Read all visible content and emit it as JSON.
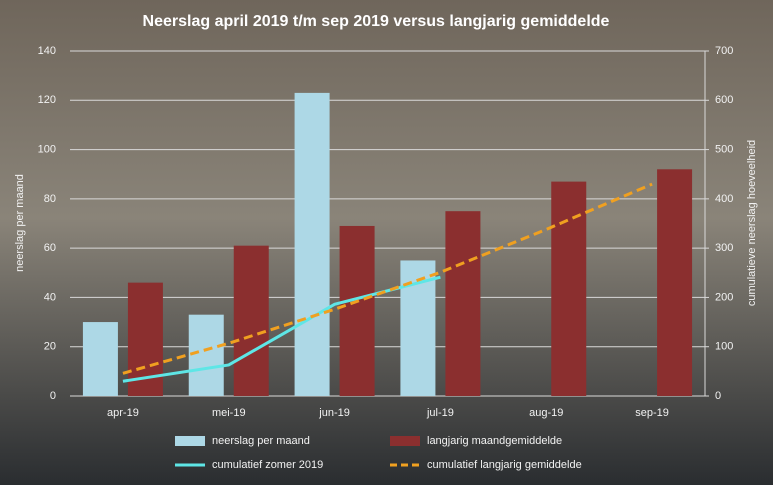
{
  "chart_data": {
    "type": "combo",
    "title": "Neerslag april 2019 t/m sep 2019 versus langjarig gemiddelde",
    "y_label": "neerslag per maand",
    "y2_label": "cumulatieve neerslag hoeveelheid",
    "categories": [
      "apr-19",
      "mei-19",
      "jun-19",
      "jul-19",
      "aug-19",
      "sep-19"
    ],
    "ylim": [
      0,
      140
    ],
    "yticks": [
      0,
      20,
      40,
      60,
      80,
      100,
      120,
      140
    ],
    "y2lim": [
      0,
      700
    ],
    "y2ticks": [
      0,
      100,
      200,
      300,
      400,
      500,
      600,
      700
    ],
    "grid": true,
    "series": [
      {
        "name": "neerslag per maand",
        "type": "bar",
        "color": "#add8e6",
        "values": [
          30,
          33,
          123,
          55,
          null,
          null
        ]
      },
      {
        "name": "langjarig maandgemiddelde",
        "type": "bar",
        "color": "#8b2f2f",
        "values": [
          46,
          61,
          69,
          75,
          87,
          92
        ]
      },
      {
        "name": "cumulatief zomer 2019",
        "type": "line",
        "axis": "y2",
        "color": "#5ee6e6",
        "values": [
          30,
          63,
          186,
          241,
          null,
          null
        ]
      },
      {
        "name": "cumulatief langjarig gemiddelde",
        "type": "line",
        "axis": "y2",
        "line_style": "dashed",
        "color": "#f0a020",
        "values": [
          46,
          107,
          176,
          251,
          338,
          430
        ]
      }
    ]
  }
}
